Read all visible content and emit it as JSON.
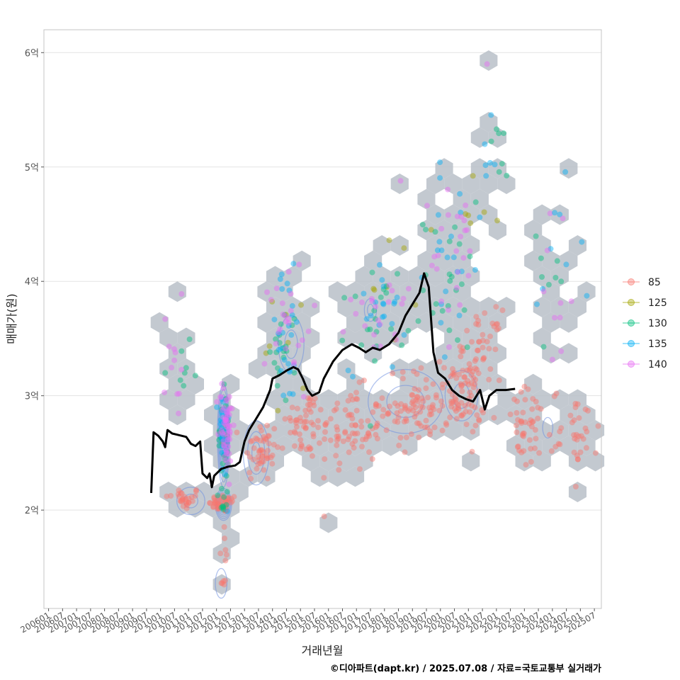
{
  "chart_data": {
    "type": "scatter",
    "title": "",
    "xlabel": "거래년월",
    "ylabel": "매매가(원)",
    "caption": "©디아파트(dapt.kr) / 2025.07.08 / 자료=국토교통부 실거래가",
    "x_ticks": [
      "200601",
      "200607",
      "200701",
      "200707",
      "200801",
      "200807",
      "200901",
      "200907",
      "201001",
      "201007",
      "201101",
      "201107",
      "201201",
      "201207",
      "201301",
      "201307",
      "201401",
      "201407",
      "201501",
      "201507",
      "201601",
      "201607",
      "201701",
      "201707",
      "201801",
      "201807",
      "201901",
      "201907",
      "202001",
      "202007",
      "202101",
      "202107",
      "202201",
      "202207",
      "202301",
      "202307",
      "202401",
      "202407",
      "202501",
      "202507"
    ],
    "x_range": [
      "2005-11",
      "2025-10"
    ],
    "y_ticks": [
      {
        "value": 2,
        "label": "2억"
      },
      {
        "value": 3,
        "label": "3억"
      },
      {
        "value": 4,
        "label": "4억"
      },
      {
        "value": 5,
        "label": "5억"
      },
      {
        "value": 6,
        "label": "6억"
      }
    ],
    "ylim": [
      1.14,
      6.2
    ],
    "y_unit": "억",
    "grid": "horizontal",
    "legend_position": "right",
    "series": [
      {
        "name": "85",
        "color": "#F8766D",
        "clusters": [
          {
            "x": "2010-11",
            "y": 2.1,
            "sx": 4.0,
            "sy": 0.05,
            "n": 28
          },
          {
            "x": "2012-04",
            "y": 2.06,
            "sx": 3.0,
            "sy": 0.04,
            "n": 40
          },
          {
            "x": "2012-04",
            "y": 1.7,
            "sx": 1.0,
            "sy": 0.12,
            "n": 6
          },
          {
            "x": "2012-04",
            "y": 1.37,
            "sx": 0.5,
            "sy": 0.02,
            "n": 5
          },
          {
            "x": "2013-08",
            "y": 2.52,
            "sx": 4.0,
            "sy": 0.14,
            "n": 50
          },
          {
            "x": "2015-03",
            "y": 2.75,
            "sx": 4.0,
            "sy": 0.16,
            "n": 45
          },
          {
            "x": "2016-10",
            "y": 2.7,
            "sx": 7.0,
            "sy": 0.18,
            "n": 80
          },
          {
            "x": "2019-03",
            "y": 2.9,
            "sx": 7.0,
            "sy": 0.17,
            "n": 85
          },
          {
            "x": "2020-10",
            "y": 3.0,
            "sx": 5.0,
            "sy": 0.17,
            "n": 75
          },
          {
            "x": "2021-07",
            "y": 3.45,
            "sx": 4.0,
            "sy": 0.15,
            "n": 40
          },
          {
            "x": "2023-03",
            "y": 2.7,
            "sx": 5.0,
            "sy": 0.18,
            "n": 45
          },
          {
            "x": "2024-11",
            "y": 2.7,
            "sx": 5.0,
            "sy": 0.18,
            "n": 35
          }
        ]
      },
      {
        "name": "125",
        "color": "#A3A500",
        "clusters": [
          {
            "x": "2014-09",
            "y": 3.45,
            "sx": 6.0,
            "sy": 0.35,
            "n": 8
          },
          {
            "x": "2018-03",
            "y": 4.05,
            "sx": 6.0,
            "sy": 0.3,
            "n": 8
          },
          {
            "x": "2021-05",
            "y": 4.4,
            "sx": 4.0,
            "sy": 0.25,
            "n": 6
          }
        ]
      },
      {
        "name": "130",
        "color": "#00BF7D",
        "clusters": [
          {
            "x": "2010-12",
            "y": 3.25,
            "sx": 2.0,
            "sy": 0.12,
            "n": 6
          },
          {
            "x": "2012-04",
            "y": 2.6,
            "sx": 1.2,
            "sy": 0.25,
            "n": 35
          },
          {
            "x": "2012-04",
            "y": 2.05,
            "sx": 0.4,
            "sy": 0.03,
            "n": 6
          },
          {
            "x": "2014-06",
            "y": 3.4,
            "sx": 3.0,
            "sy": 0.2,
            "n": 20
          },
          {
            "x": "2017-10",
            "y": 3.7,
            "sx": 6.0,
            "sy": 0.25,
            "n": 22
          },
          {
            "x": "2020-06",
            "y": 4.0,
            "sx": 6.0,
            "sy": 0.3,
            "n": 22
          },
          {
            "x": "2021-10",
            "y": 4.9,
            "sx": 3.0,
            "sy": 0.25,
            "n": 8
          },
          {
            "x": "2023-09",
            "y": 3.9,
            "sx": 6.0,
            "sy": 0.4,
            "n": 8
          }
        ]
      },
      {
        "name": "135",
        "color": "#00B0F6",
        "clusters": [
          {
            "x": "2012-04",
            "y": 2.65,
            "sx": 1.2,
            "sy": 0.22,
            "n": 30
          },
          {
            "x": "2014-07",
            "y": 3.5,
            "sx": 4.0,
            "sy": 0.3,
            "n": 25
          },
          {
            "x": "2017-10",
            "y": 3.8,
            "sx": 6.0,
            "sy": 0.3,
            "n": 20
          },
          {
            "x": "2020-07",
            "y": 4.2,
            "sx": 6.0,
            "sy": 0.35,
            "n": 20
          },
          {
            "x": "2021-09",
            "y": 5.0,
            "sx": 2.0,
            "sy": 0.2,
            "n": 6
          },
          {
            "x": "2023-12",
            "y": 4.1,
            "sx": 7.0,
            "sy": 0.35,
            "n": 8
          }
        ]
      },
      {
        "name": "140",
        "color": "#E76BF3",
        "clusters": [
          {
            "x": "2010-07",
            "y": 3.0,
            "sx": 3.0,
            "sy": 0.3,
            "n": 10
          },
          {
            "x": "2012-05",
            "y": 2.75,
            "sx": 1.5,
            "sy": 0.2,
            "n": 55
          },
          {
            "x": "2014-08",
            "y": 3.6,
            "sx": 5.0,
            "sy": 0.3,
            "n": 25
          },
          {
            "x": "2017-10",
            "y": 3.85,
            "sx": 6.0,
            "sy": 0.3,
            "n": 22
          },
          {
            "x": "2020-09",
            "y": 4.2,
            "sx": 6.0,
            "sy": 0.35,
            "n": 25
          },
          {
            "x": "2023-12",
            "y": 4.0,
            "sx": 7.0,
            "sy": 0.4,
            "n": 10
          }
        ]
      }
    ],
    "highlighted_points": [
      {
        "x": "2010-10",
        "y": 3.89,
        "series": "140"
      },
      {
        "x": "2010-03",
        "y": 3.67,
        "series": "140"
      },
      {
        "x": "2010-10",
        "y": 3.39,
        "series": "130"
      },
      {
        "x": "2010-03",
        "y": 3.2,
        "series": "130"
      },
      {
        "x": "2021-09",
        "y": 5.9,
        "series": "140"
      },
      {
        "x": "2021-08",
        "y": 5.2,
        "series": "135"
      },
      {
        "x": "2024-02",
        "y": 4.6,
        "series": "135"
      }
    ],
    "trend_line": [
      [
        "2009-09",
        2.15
      ],
      [
        "2009-10",
        2.68
      ],
      [
        "2009-12",
        2.65
      ],
      [
        "2010-02",
        2.6
      ],
      [
        "2010-03",
        2.55
      ],
      [
        "2010-04",
        2.7
      ],
      [
        "2010-06",
        2.67
      ],
      [
        "2010-08",
        2.66
      ],
      [
        "2010-10",
        2.65
      ],
      [
        "2010-12",
        2.64
      ],
      [
        "2011-02",
        2.58
      ],
      [
        "2011-04",
        2.56
      ],
      [
        "2011-06",
        2.6
      ],
      [
        "2011-07",
        2.32
      ],
      [
        "2011-09",
        2.28
      ],
      [
        "2011-10",
        2.32
      ],
      [
        "2011-11",
        2.2
      ],
      [
        "2011-12",
        2.3
      ],
      [
        "2012-03",
        2.36
      ],
      [
        "2012-06",
        2.38
      ],
      [
        "2012-09",
        2.39
      ],
      [
        "2012-11",
        2.42
      ],
      [
        "2013-01",
        2.6
      ],
      [
        "2013-03",
        2.7
      ],
      [
        "2013-06",
        2.8
      ],
      [
        "2013-09",
        2.9
      ],
      [
        "2013-12",
        3.05
      ],
      [
        "2014-01",
        3.15
      ],
      [
        "2014-04",
        3.18
      ],
      [
        "2014-07",
        3.22
      ],
      [
        "2014-10",
        3.25
      ],
      [
        "2014-12",
        3.23
      ],
      [
        "2015-02",
        3.15
      ],
      [
        "2015-04",
        3.05
      ],
      [
        "2015-06",
        3.0
      ],
      [
        "2015-09",
        3.03
      ],
      [
        "2015-11",
        3.15
      ],
      [
        "2016-03",
        3.3
      ],
      [
        "2016-07",
        3.4
      ],
      [
        "2016-11",
        3.45
      ],
      [
        "2017-02",
        3.42
      ],
      [
        "2017-05",
        3.38
      ],
      [
        "2017-08",
        3.42
      ],
      [
        "2017-11",
        3.4
      ],
      [
        "2018-03",
        3.45
      ],
      [
        "2018-07",
        3.55
      ],
      [
        "2018-10",
        3.7
      ],
      [
        "2019-01",
        3.8
      ],
      [
        "2019-04",
        3.9
      ],
      [
        "2019-06",
        4.07
      ],
      [
        "2019-08",
        3.95
      ],
      [
        "2019-10",
        3.38
      ],
      [
        "2019-12",
        3.2
      ],
      [
        "2020-03",
        3.15
      ],
      [
        "2020-06",
        3.05
      ],
      [
        "2020-09",
        3.0
      ],
      [
        "2020-12",
        2.97
      ],
      [
        "2021-03",
        2.95
      ],
      [
        "2021-06",
        3.05
      ],
      [
        "2021-08",
        2.88
      ],
      [
        "2021-10",
        3.0
      ],
      [
        "2022-01",
        3.05
      ],
      [
        "2022-05",
        3.05
      ],
      [
        "2022-09",
        3.06
      ]
    ]
  },
  "legend": {
    "items": [
      {
        "label": "85",
        "color": "#F8766D"
      },
      {
        "label": "125",
        "color": "#A3A500"
      },
      {
        "label": "130",
        "color": "#00BF7D"
      },
      {
        "label": "135",
        "color": "#00B0F6"
      },
      {
        "label": "140",
        "color": "#E76BF3"
      }
    ]
  },
  "colors": {
    "hex_fill": "#b8c0c8",
    "contour": "#6f8fe0",
    "trend": "#000000",
    "panel_border": "#bbbbbb",
    "grid": "#e3e3e3"
  }
}
